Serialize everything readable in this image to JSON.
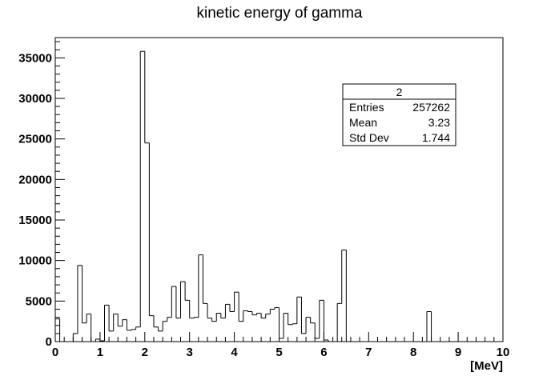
{
  "chart_data": {
    "type": "bar",
    "subtype": "histogram",
    "title": "kinetic energy of gamma",
    "xlabel": "[MeV]",
    "ylabel": "",
    "xlim": [
      0,
      10
    ],
    "ylim": [
      0,
      37500
    ],
    "bin_width": 0.1,
    "x_ticks": [
      0,
      1,
      2,
      3,
      4,
      5,
      6,
      7,
      8,
      9,
      10
    ],
    "y_ticks": [
      0,
      5000,
      10000,
      15000,
      20000,
      25000,
      30000,
      35000
    ],
    "grid": false,
    "line_color": "#000000",
    "values": [
      2800,
      0,
      0,
      0,
      1000,
      9400,
      2300,
      3400,
      0,
      300,
      100,
      4500,
      1300,
      3400,
      1900,
      2700,
      1400,
      1500,
      1800,
      35800,
      24500,
      3200,
      1800,
      1300,
      2500,
      3000,
      6800,
      2900,
      7400,
      5100,
      2900,
      3000,
      10700,
      4700,
      2900,
      2500,
      3500,
      2900,
      4600,
      3700,
      6100,
      2500,
      3800,
      3700,
      3300,
      3500,
      2900,
      3400,
      4000,
      4200,
      400,
      3500,
      2100,
      2200,
      5500,
      1000,
      3000,
      2300,
      400,
      5100,
      200,
      0,
      0,
      4700,
      11300,
      0,
      0,
      0,
      0,
      0,
      0,
      0,
      0,
      0,
      0,
      0,
      0,
      0,
      0,
      0,
      0,
      0,
      0,
      3700,
      0,
      0,
      0,
      0,
      0,
      0,
      0,
      0,
      0,
      0,
      0,
      0,
      0,
      0,
      0,
      0
    ],
    "stats_box": {
      "title": "2",
      "rows": [
        {
          "label": "Entries",
          "value": "257262"
        },
        {
          "label": "Mean",
          "value": "3.23"
        },
        {
          "label": "Std Dev",
          "value": "1.744"
        }
      ]
    }
  }
}
